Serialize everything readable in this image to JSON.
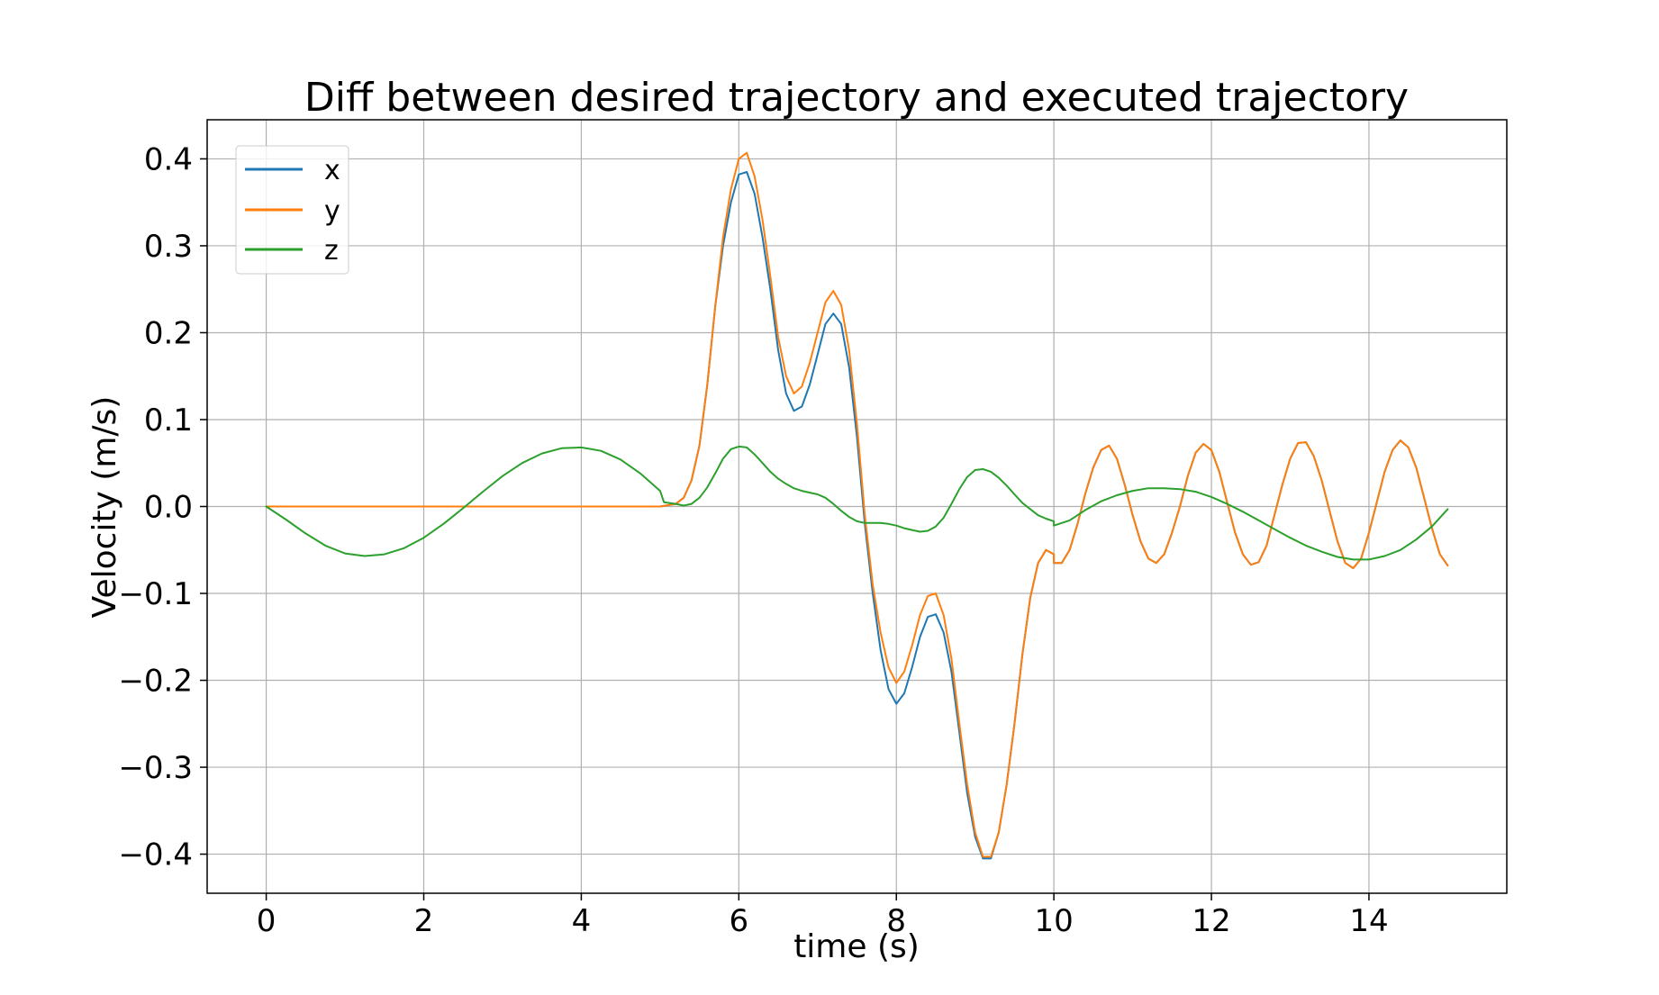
{
  "chart_data": {
    "type": "line",
    "title": "Diff between desired trajectory and executed trajectory",
    "xlabel": "time (s)",
    "ylabel": "Velocity (m/s)",
    "xlim": [
      -0.75,
      15.75
    ],
    "ylim": [
      -0.445,
      0.445
    ],
    "xticks": [
      0,
      2,
      4,
      6,
      8,
      10,
      12,
      14
    ],
    "xtick_labels": [
      "0",
      "2",
      "4",
      "6",
      "8",
      "10",
      "12",
      "14"
    ],
    "yticks": [
      0.4,
      0.3,
      0.2,
      0.1,
      0.0,
      -0.1,
      -0.2,
      -0.3,
      -0.4
    ],
    "ytick_labels": [
      "0.4",
      "0.3",
      "0.2",
      "0.1",
      "0.0",
      "−0.1",
      "−0.2",
      "−0.3",
      "−0.4"
    ],
    "grid": true,
    "legend_position": "top-left",
    "series": [
      {
        "name": "x",
        "color": "#1f77b4",
        "points": [
          [
            0,
            0
          ],
          [
            5.0,
            0
          ],
          [
            5.2,
            0.003
          ],
          [
            5.3,
            0.01
          ],
          [
            5.4,
            0.03
          ],
          [
            5.5,
            0.07
          ],
          [
            5.6,
            0.14
          ],
          [
            5.7,
            0.23
          ],
          [
            5.8,
            0.3
          ],
          [
            5.9,
            0.35
          ],
          [
            6.0,
            0.382
          ],
          [
            6.1,
            0.385
          ],
          [
            6.2,
            0.36
          ],
          [
            6.3,
            0.31
          ],
          [
            6.4,
            0.25
          ],
          [
            6.5,
            0.18
          ],
          [
            6.6,
            0.13
          ],
          [
            6.7,
            0.11
          ],
          [
            6.8,
            0.115
          ],
          [
            6.9,
            0.14
          ],
          [
            7.0,
            0.175
          ],
          [
            7.1,
            0.21
          ],
          [
            7.2,
            0.222
          ],
          [
            7.3,
            0.21
          ],
          [
            7.4,
            0.16
          ],
          [
            7.5,
            0.08
          ],
          [
            7.6,
            -0.02
          ],
          [
            7.7,
            -0.1
          ],
          [
            7.8,
            -0.165
          ],
          [
            7.9,
            -0.21
          ],
          [
            8.0,
            -0.227
          ],
          [
            8.1,
            -0.215
          ],
          [
            8.2,
            -0.185
          ],
          [
            8.3,
            -0.15
          ],
          [
            8.4,
            -0.127
          ],
          [
            8.5,
            -0.124
          ],
          [
            8.6,
            -0.145
          ],
          [
            8.7,
            -0.19
          ],
          [
            8.8,
            -0.26
          ],
          [
            8.9,
            -0.33
          ],
          [
            9.0,
            -0.38
          ],
          [
            9.1,
            -0.405
          ],
          [
            9.2,
            -0.405
          ],
          [
            9.3,
            -0.375
          ],
          [
            9.4,
            -0.32
          ],
          [
            9.5,
            -0.25
          ],
          [
            9.6,
            -0.17
          ],
          [
            9.7,
            -0.105
          ],
          [
            9.8,
            -0.065
          ],
          [
            9.9,
            -0.05
          ],
          [
            10.0,
            -0.055
          ],
          [
            10.0,
            -0.065
          ],
          [
            10.1,
            -0.065
          ],
          [
            10.2,
            -0.05
          ],
          [
            10.3,
            -0.02
          ],
          [
            10.4,
            0.015
          ],
          [
            10.5,
            0.045
          ],
          [
            10.6,
            0.065
          ],
          [
            10.7,
            0.07
          ],
          [
            10.8,
            0.055
          ],
          [
            10.9,
            0.025
          ],
          [
            11.0,
            -0.01
          ],
          [
            11.1,
            -0.04
          ],
          [
            11.2,
            -0.06
          ],
          [
            11.3,
            -0.065
          ],
          [
            11.4,
            -0.055
          ],
          [
            11.5,
            -0.03
          ],
          [
            11.6,
            0.0
          ],
          [
            11.7,
            0.035
          ],
          [
            11.8,
            0.062
          ],
          [
            11.9,
            0.072
          ],
          [
            12.0,
            0.065
          ],
          [
            12.1,
            0.04
          ],
          [
            12.2,
            0.005
          ],
          [
            12.3,
            -0.03
          ],
          [
            12.4,
            -0.055
          ],
          [
            12.5,
            -0.067
          ],
          [
            12.6,
            -0.064
          ],
          [
            12.7,
            -0.045
          ],
          [
            12.8,
            -0.01
          ],
          [
            12.9,
            0.025
          ],
          [
            13.0,
            0.055
          ],
          [
            13.1,
            0.073
          ],
          [
            13.2,
            0.074
          ],
          [
            13.3,
            0.058
          ],
          [
            13.4,
            0.03
          ],
          [
            13.5,
            -0.005
          ],
          [
            13.6,
            -0.04
          ],
          [
            13.7,
            -0.065
          ],
          [
            13.8,
            -0.071
          ],
          [
            13.9,
            -0.06
          ],
          [
            14.0,
            -0.03
          ],
          [
            14.1,
            0.005
          ],
          [
            14.2,
            0.04
          ],
          [
            14.3,
            0.065
          ],
          [
            14.4,
            0.076
          ],
          [
            14.5,
            0.068
          ],
          [
            14.6,
            0.045
          ],
          [
            14.7,
            0.01
          ],
          [
            14.8,
            -0.025
          ],
          [
            14.9,
            -0.055
          ],
          [
            15.0,
            -0.068
          ]
        ]
      },
      {
        "name": "y",
        "color": "#ff7f0e",
        "points": [
          [
            0,
            0
          ],
          [
            5.0,
            0
          ],
          [
            5.2,
            0.003
          ],
          [
            5.3,
            0.01
          ],
          [
            5.4,
            0.03
          ],
          [
            5.5,
            0.07
          ],
          [
            5.6,
            0.14
          ],
          [
            5.7,
            0.23
          ],
          [
            5.8,
            0.31
          ],
          [
            5.9,
            0.365
          ],
          [
            6.0,
            0.4
          ],
          [
            6.1,
            0.407
          ],
          [
            6.2,
            0.38
          ],
          [
            6.3,
            0.33
          ],
          [
            6.4,
            0.265
          ],
          [
            6.5,
            0.195
          ],
          [
            6.6,
            0.15
          ],
          [
            6.7,
            0.13
          ],
          [
            6.8,
            0.138
          ],
          [
            6.9,
            0.165
          ],
          [
            7.0,
            0.2
          ],
          [
            7.1,
            0.235
          ],
          [
            7.2,
            0.248
          ],
          [
            7.3,
            0.232
          ],
          [
            7.4,
            0.18
          ],
          [
            7.5,
            0.095
          ],
          [
            7.6,
            -0.01
          ],
          [
            7.7,
            -0.09
          ],
          [
            7.8,
            -0.145
          ],
          [
            7.9,
            -0.185
          ],
          [
            8.0,
            -0.203
          ],
          [
            8.1,
            -0.19
          ],
          [
            8.2,
            -0.16
          ],
          [
            8.3,
            -0.125
          ],
          [
            8.4,
            -0.103
          ],
          [
            8.5,
            -0.1
          ],
          [
            8.6,
            -0.125
          ],
          [
            8.7,
            -0.175
          ],
          [
            8.8,
            -0.25
          ],
          [
            8.9,
            -0.32
          ],
          [
            9.0,
            -0.375
          ],
          [
            9.1,
            -0.403
          ],
          [
            9.2,
            -0.403
          ],
          [
            9.3,
            -0.375
          ],
          [
            9.4,
            -0.32
          ],
          [
            9.5,
            -0.25
          ],
          [
            9.6,
            -0.17
          ],
          [
            9.7,
            -0.105
          ],
          [
            9.8,
            -0.065
          ],
          [
            9.9,
            -0.05
          ],
          [
            10.0,
            -0.055
          ],
          [
            10.0,
            -0.065
          ],
          [
            10.1,
            -0.065
          ],
          [
            10.2,
            -0.05
          ],
          [
            10.3,
            -0.02
          ],
          [
            10.4,
            0.015
          ],
          [
            10.5,
            0.045
          ],
          [
            10.6,
            0.065
          ],
          [
            10.7,
            0.07
          ],
          [
            10.8,
            0.055
          ],
          [
            10.9,
            0.025
          ],
          [
            11.0,
            -0.01
          ],
          [
            11.1,
            -0.04
          ],
          [
            11.2,
            -0.06
          ],
          [
            11.3,
            -0.065
          ],
          [
            11.4,
            -0.055
          ],
          [
            11.5,
            -0.03
          ],
          [
            11.6,
            0.0
          ],
          [
            11.7,
            0.035
          ],
          [
            11.8,
            0.062
          ],
          [
            11.9,
            0.072
          ],
          [
            12.0,
            0.065
          ],
          [
            12.1,
            0.04
          ],
          [
            12.2,
            0.005
          ],
          [
            12.3,
            -0.03
          ],
          [
            12.4,
            -0.055
          ],
          [
            12.5,
            -0.067
          ],
          [
            12.6,
            -0.064
          ],
          [
            12.7,
            -0.045
          ],
          [
            12.8,
            -0.01
          ],
          [
            12.9,
            0.025
          ],
          [
            13.0,
            0.055
          ],
          [
            13.1,
            0.073
          ],
          [
            13.2,
            0.074
          ],
          [
            13.3,
            0.058
          ],
          [
            13.4,
            0.03
          ],
          [
            13.5,
            -0.005
          ],
          [
            13.6,
            -0.04
          ],
          [
            13.7,
            -0.065
          ],
          [
            13.8,
            -0.071
          ],
          [
            13.9,
            -0.06
          ],
          [
            14.0,
            -0.03
          ],
          [
            14.1,
            0.005
          ],
          [
            14.2,
            0.04
          ],
          [
            14.3,
            0.065
          ],
          [
            14.4,
            0.076
          ],
          [
            14.5,
            0.068
          ],
          [
            14.6,
            0.045
          ],
          [
            14.7,
            0.01
          ],
          [
            14.8,
            -0.025
          ],
          [
            14.9,
            -0.055
          ],
          [
            15.0,
            -0.068
          ]
        ]
      },
      {
        "name": "z",
        "color": "#2ca02c",
        "points": [
          [
            0,
            0
          ],
          [
            0.25,
            -0.015
          ],
          [
            0.5,
            -0.031
          ],
          [
            0.75,
            -0.045
          ],
          [
            1.0,
            -0.054
          ],
          [
            1.25,
            -0.057
          ],
          [
            1.5,
            -0.055
          ],
          [
            1.75,
            -0.048
          ],
          [
            2.0,
            -0.036
          ],
          [
            2.25,
            -0.02
          ],
          [
            2.5,
            -0.002
          ],
          [
            2.75,
            0.017
          ],
          [
            3.0,
            0.035
          ],
          [
            3.25,
            0.05
          ],
          [
            3.5,
            0.061
          ],
          [
            3.75,
            0.067
          ],
          [
            4.0,
            0.068
          ],
          [
            4.25,
            0.064
          ],
          [
            4.5,
            0.054
          ],
          [
            4.75,
            0.038
          ],
          [
            5.0,
            0.018
          ],
          [
            5.05,
            0.005
          ],
          [
            5.2,
            0.003
          ],
          [
            5.3,
            0.001
          ],
          [
            5.4,
            0.003
          ],
          [
            5.5,
            0.01
          ],
          [
            5.6,
            0.022
          ],
          [
            5.7,
            0.038
          ],
          [
            5.8,
            0.055
          ],
          [
            5.9,
            0.066
          ],
          [
            6.0,
            0.069
          ],
          [
            6.1,
            0.068
          ],
          [
            6.2,
            0.06
          ],
          [
            6.3,
            0.05
          ],
          [
            6.4,
            0.04
          ],
          [
            6.5,
            0.032
          ],
          [
            6.6,
            0.026
          ],
          [
            6.7,
            0.021
          ],
          [
            6.8,
            0.018
          ],
          [
            6.9,
            0.016
          ],
          [
            7.0,
            0.014
          ],
          [
            7.1,
            0.01
          ],
          [
            7.2,
            0.003
          ],
          [
            7.3,
            -0.005
          ],
          [
            7.4,
            -0.012
          ],
          [
            7.5,
            -0.017
          ],
          [
            7.6,
            -0.019
          ],
          [
            7.7,
            -0.019
          ],
          [
            7.8,
            -0.019
          ],
          [
            7.9,
            -0.02
          ],
          [
            8.0,
            -0.022
          ],
          [
            8.1,
            -0.025
          ],
          [
            8.2,
            -0.027
          ],
          [
            8.3,
            -0.029
          ],
          [
            8.4,
            -0.028
          ],
          [
            8.5,
            -0.023
          ],
          [
            8.6,
            -0.013
          ],
          [
            8.7,
            0.003
          ],
          [
            8.8,
            0.02
          ],
          [
            8.9,
            0.034
          ],
          [
            9.0,
            0.042
          ],
          [
            9.1,
            0.043
          ],
          [
            9.2,
            0.04
          ],
          [
            9.3,
            0.033
          ],
          [
            9.4,
            0.024
          ],
          [
            9.5,
            0.014
          ],
          [
            9.6,
            0.004
          ],
          [
            9.7,
            -0.003
          ],
          [
            9.8,
            -0.01
          ],
          [
            9.9,
            -0.014
          ],
          [
            10.0,
            -0.017
          ],
          [
            10.0,
            -0.022
          ],
          [
            10.2,
            -0.016
          ],
          [
            10.4,
            -0.004
          ],
          [
            10.6,
            0.006
          ],
          [
            10.8,
            0.013
          ],
          [
            11.0,
            0.018
          ],
          [
            11.2,
            0.021
          ],
          [
            11.4,
            0.021
          ],
          [
            11.6,
            0.02
          ],
          [
            11.8,
            0.017
          ],
          [
            12.0,
            0.011
          ],
          [
            12.2,
            0.003
          ],
          [
            12.4,
            -0.006
          ],
          [
            12.6,
            -0.016
          ],
          [
            12.8,
            -0.026
          ],
          [
            13.0,
            -0.036
          ],
          [
            13.2,
            -0.045
          ],
          [
            13.4,
            -0.052
          ],
          [
            13.6,
            -0.058
          ],
          [
            13.8,
            -0.061
          ],
          [
            14.0,
            -0.061
          ],
          [
            14.2,
            -0.057
          ],
          [
            14.4,
            -0.05
          ],
          [
            14.6,
            -0.038
          ],
          [
            14.8,
            -0.023
          ],
          [
            15.0,
            -0.003
          ]
        ]
      }
    ]
  }
}
